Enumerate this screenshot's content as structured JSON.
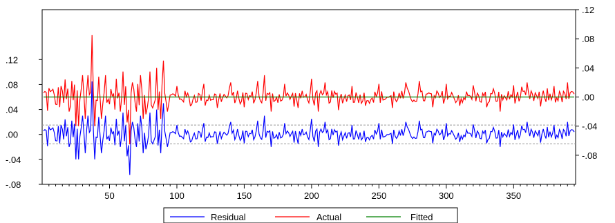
{
  "chart_data": {
    "type": "line",
    "x_range": [
      1,
      395
    ],
    "x_ticks": [
      50,
      100,
      150,
      200,
      250,
      300,
      350
    ],
    "left_axis": {
      "ylim": [
        -0.08,
        0.2
      ],
      "ticks": [
        -0.08,
        -0.04,
        0.0,
        0.04,
        0.08,
        0.12
      ],
      "tick_labels": [
        "-.08",
        "-.04",
        ".00",
        ".04",
        ".08",
        ".12"
      ]
    },
    "right_axis": {
      "ylim": [
        -0.12,
        0.12
      ],
      "ticks": [
        -0.08,
        -0.04,
        0.0,
        0.04,
        0.08,
        0.12
      ],
      "tick_labels": [
        "-.08",
        "-.04",
        ".00",
        ".04",
        ".08",
        ".12"
      ]
    },
    "reference_lines_left": [
      0.015,
      -0.015
    ],
    "legend_position": "bottom-center",
    "series": [
      {
        "name": "Residual",
        "axis": "left",
        "color": "#0000ff",
        "spikes": [
          [
            5,
            0.012
          ],
          [
            10,
            -0.01
          ],
          [
            14,
            0.015
          ],
          [
            20,
            -0.02
          ],
          [
            22,
            0.022
          ],
          [
            25,
            -0.04
          ],
          [
            27,
            -0.04
          ],
          [
            30,
            0.03
          ],
          [
            32,
            -0.03
          ],
          [
            34,
            0.03
          ],
          [
            37,
            0.085
          ],
          [
            39,
            -0.04
          ],
          [
            42,
            0.028
          ],
          [
            44,
            -0.03
          ],
          [
            47,
            0.03
          ],
          [
            50,
            -0.01
          ],
          [
            55,
            0.025
          ],
          [
            58,
            -0.02
          ],
          [
            60,
            0.035
          ],
          [
            63,
            -0.035
          ],
          [
            65,
            -0.065
          ],
          [
            67,
            0.02
          ],
          [
            70,
            -0.02
          ],
          [
            73,
            0.03
          ],
          [
            75,
            -0.03
          ],
          [
            80,
            0.035
          ],
          [
            82,
            -0.015
          ],
          [
            85,
            0.04
          ],
          [
            88,
            -0.03
          ],
          [
            90,
            0.05
          ],
          [
            93,
            -0.02
          ],
          [
            100,
            0.015
          ],
          [
            110,
            -0.012
          ],
          [
            120,
            0.018
          ],
          [
            130,
            -0.015
          ],
          [
            140,
            0.02
          ],
          [
            150,
            -0.014
          ],
          [
            160,
            0.022
          ],
          [
            165,
            0.03
          ],
          [
            170,
            -0.02
          ],
          [
            180,
            0.018
          ],
          [
            190,
            -0.015
          ],
          [
            200,
            0.025
          ],
          [
            205,
            -0.02
          ],
          [
            210,
            0.02
          ],
          [
            220,
            -0.018
          ],
          [
            230,
            0.015
          ],
          [
            240,
            -0.012
          ],
          [
            250,
            0.018
          ],
          [
            260,
            -0.015
          ],
          [
            270,
            0.02
          ],
          [
            280,
            0.022
          ],
          [
            290,
            -0.014
          ],
          [
            300,
            0.018
          ],
          [
            310,
            -0.012
          ],
          [
            320,
            0.016
          ],
          [
            330,
            -0.014
          ],
          [
            340,
            -0.02
          ],
          [
            350,
            0.016
          ],
          [
            360,
            0.02
          ],
          [
            370,
            -0.013
          ],
          [
            380,
            0.015
          ],
          [
            390,
            0.02
          ],
          [
            395,
            0.004
          ]
        ]
      },
      {
        "name": "Actual",
        "axis": "right",
        "color": "#ff0000",
        "spikes": [
          [
            5,
            0.012
          ],
          [
            10,
            -0.01
          ],
          [
            14,
            0.015
          ],
          [
            20,
            -0.02
          ],
          [
            22,
            0.022
          ],
          [
            25,
            -0.04
          ],
          [
            27,
            -0.04
          ],
          [
            30,
            0.03
          ],
          [
            32,
            -0.03
          ],
          [
            34,
            0.03
          ],
          [
            37,
            0.085
          ],
          [
            39,
            -0.04
          ],
          [
            42,
            0.028
          ],
          [
            44,
            -0.03
          ],
          [
            47,
            0.03
          ],
          [
            50,
            -0.01
          ],
          [
            55,
            0.025
          ],
          [
            58,
            -0.02
          ],
          [
            60,
            0.035
          ],
          [
            63,
            -0.035
          ],
          [
            65,
            -0.065
          ],
          [
            67,
            0.02
          ],
          [
            70,
            -0.02
          ],
          [
            73,
            0.03
          ],
          [
            75,
            -0.03
          ],
          [
            80,
            0.035
          ],
          [
            82,
            -0.015
          ],
          [
            85,
            0.04
          ],
          [
            88,
            -0.03
          ],
          [
            90,
            0.05
          ],
          [
            93,
            -0.02
          ],
          [
            100,
            0.015
          ],
          [
            110,
            -0.012
          ],
          [
            120,
            0.018
          ],
          [
            130,
            -0.015
          ],
          [
            140,
            0.02
          ],
          [
            150,
            -0.014
          ],
          [
            160,
            0.022
          ],
          [
            165,
            0.03
          ],
          [
            170,
            -0.02
          ],
          [
            180,
            0.018
          ],
          [
            190,
            -0.015
          ],
          [
            200,
            0.025
          ],
          [
            205,
            -0.02
          ],
          [
            210,
            0.02
          ],
          [
            220,
            -0.018
          ],
          [
            230,
            0.015
          ],
          [
            240,
            -0.012
          ],
          [
            250,
            0.018
          ],
          [
            260,
            -0.015
          ],
          [
            270,
            0.02
          ],
          [
            280,
            0.022
          ],
          [
            290,
            -0.014
          ],
          [
            300,
            0.018
          ],
          [
            310,
            -0.012
          ],
          [
            320,
            0.016
          ],
          [
            330,
            -0.014
          ],
          [
            340,
            -0.02
          ],
          [
            350,
            0.016
          ],
          [
            360,
            0.02
          ],
          [
            370,
            -0.013
          ],
          [
            380,
            0.015
          ],
          [
            390,
            0.02
          ],
          [
            395,
            0.004
          ]
        ]
      },
      {
        "name": "Fitted",
        "axis": "right",
        "color": "#008000",
        "values_constant": 0.0
      }
    ]
  }
}
